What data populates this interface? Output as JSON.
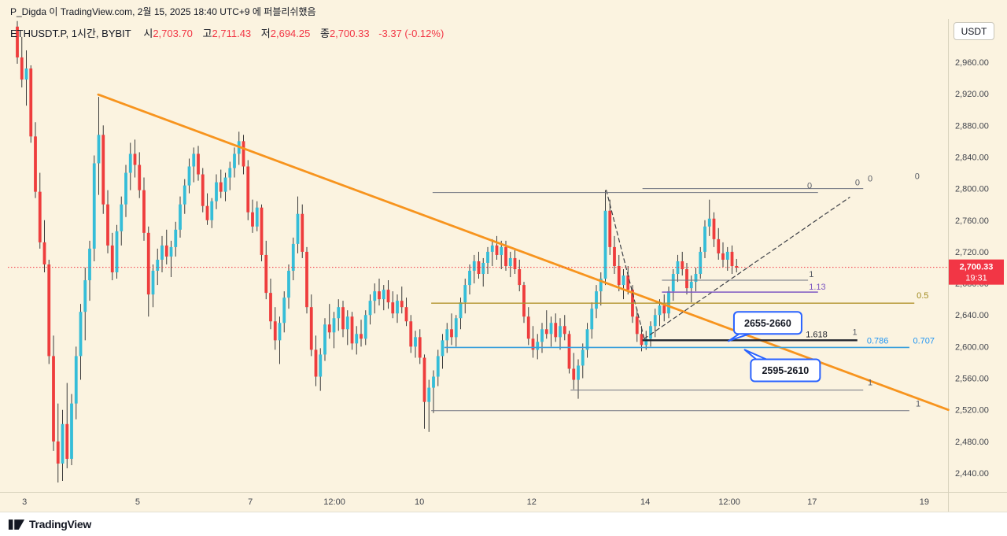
{
  "page": {
    "bg": "#fbf3e0",
    "publish_line": "P_Digda 이 TradingView.com, 2월 15, 2025 18:40 UTC+9 에 퍼블리쉬했음",
    "footer_logo": "TradingView"
  },
  "header": {
    "symbol_line": "ETHUSDT.P, 1시간, BYBIT",
    "ohlc": [
      {
        "label": "시",
        "value": "2,703.70"
      },
      {
        "label": "고",
        "value": "2,711.43"
      },
      {
        "label": "저",
        "value": "2,694.25"
      },
      {
        "label": "종",
        "value": "2,700.33"
      }
    ],
    "change": "-3.37 (-0.12%)"
  },
  "price_scale": {
    "currency": "USDT",
    "last_price": "2,700.33",
    "countdown": "19:31"
  },
  "chart_data": {
    "type": "candlestick",
    "symbol": "ETHUSDT.P",
    "interval": "1시간",
    "exchange": "BYBIT",
    "last_price_value": 2700.33,
    "ohlc_current": {
      "open": 2703.7,
      "high": 2711.43,
      "low": 2694.25,
      "close": 2700.33,
      "change": -3.37,
      "change_pct": -0.12
    },
    "colors": {
      "up": "#35bdd8",
      "down": "#ee3d3d",
      "wick": "#3b3b3b",
      "trend": "#f7941e",
      "accent_blue": "#2962ff",
      "last_price": "#f23645"
    },
    "y_axis": {
      "min": 2420,
      "max": 3020,
      "ticks": [
        {
          "p": 2960,
          "label": "2,960.00"
        },
        {
          "p": 2920,
          "label": "2,920.00"
        },
        {
          "p": 2880,
          "label": "2,880.00"
        },
        {
          "p": 2840,
          "label": "2,840.00"
        },
        {
          "p": 2800,
          "label": "2,800.00"
        },
        {
          "p": 2760,
          "label": "2,760.00"
        },
        {
          "p": 2720,
          "label": "2,720.00"
        },
        {
          "p": 2680,
          "label": "2,680.00"
        },
        {
          "p": 2640,
          "label": "2,640.00"
        },
        {
          "p": 2600,
          "label": "2,600.00"
        },
        {
          "p": 2560,
          "label": "2,560.00"
        },
        {
          "p": 2520,
          "label": "2,520.00"
        },
        {
          "p": 2480,
          "label": "2,480.00"
        },
        {
          "p": 2440,
          "label": "2,440.00"
        }
      ]
    },
    "x_axis_ticks": [
      {
        "label": "3",
        "i": 1.6
      },
      {
        "label": "5",
        "i": 26.6
      },
      {
        "label": "7",
        "i": 51.5
      },
      {
        "label": "12:00",
        "i": 70.1
      },
      {
        "label": "10",
        "i": 88.9
      },
      {
        "label": "12",
        "i": 113.7
      },
      {
        "label": "14",
        "i": 138.8
      },
      {
        "label": "12:00",
        "i": 157.4
      },
      {
        "label": "17",
        "i": 175.7
      },
      {
        "label": "19",
        "i": 200.5
      }
    ],
    "candles": [
      [
        3005,
        3012,
        2958,
        2966
      ],
      [
        2966,
        2992,
        2928,
        2938
      ],
      [
        2938,
        2975,
        2905,
        2952
      ],
      [
        2952,
        2956,
        2858,
        2866
      ],
      [
        2866,
        2884,
        2788,
        2796
      ],
      [
        2796,
        2820,
        2724,
        2732
      ],
      [
        2732,
        2760,
        2694,
        2704
      ],
      [
        2704,
        2710,
        2578,
        2588
      ],
      [
        2588,
        2614,
        2468,
        2480
      ],
      [
        2480,
        2528,
        2428,
        2452
      ],
      [
        2452,
        2520,
        2430,
        2502
      ],
      [
        2502,
        2554,
        2446,
        2458
      ],
      [
        2458,
        2540,
        2450,
        2528
      ],
      [
        2528,
        2600,
        2508,
        2588
      ],
      [
        2588,
        2654,
        2558,
        2644
      ],
      [
        2644,
        2700,
        2608,
        2684
      ],
      [
        2684,
        2734,
        2658,
        2724
      ],
      [
        2724,
        2842,
        2708,
        2832
      ],
      [
        2832,
        2916,
        2792,
        2868
      ],
      [
        2868,
        2880,
        2768,
        2780
      ],
      [
        2780,
        2798,
        2718,
        2728
      ],
      [
        2728,
        2744,
        2684,
        2694
      ],
      [
        2694,
        2754,
        2686,
        2746
      ],
      [
        2746,
        2790,
        2728,
        2780
      ],
      [
        2780,
        2830,
        2764,
        2820
      ],
      [
        2820,
        2858,
        2798,
        2844
      ],
      [
        2844,
        2862,
        2814,
        2830
      ],
      [
        2830,
        2846,
        2788,
        2798
      ],
      [
        2798,
        2814,
        2734,
        2744
      ],
      [
        2744,
        2752,
        2638,
        2666
      ],
      [
        2666,
        2704,
        2650,
        2696
      ],
      [
        2696,
        2724,
        2678,
        2710
      ],
      [
        2710,
        2740,
        2694,
        2728
      ],
      [
        2728,
        2748,
        2704,
        2714
      ],
      [
        2714,
        2734,
        2688,
        2726
      ],
      [
        2726,
        2758,
        2714,
        2748
      ],
      [
        2748,
        2790,
        2738,
        2780
      ],
      [
        2780,
        2812,
        2768,
        2804
      ],
      [
        2804,
        2838,
        2794,
        2828
      ],
      [
        2828,
        2852,
        2808,
        2844
      ],
      [
        2844,
        2854,
        2810,
        2818
      ],
      [
        2818,
        2826,
        2770,
        2778
      ],
      [
        2778,
        2794,
        2754,
        2760
      ],
      [
        2760,
        2788,
        2750,
        2784
      ],
      [
        2784,
        2818,
        2774,
        2808
      ],
      [
        2808,
        2824,
        2788,
        2796
      ],
      [
        2796,
        2820,
        2784,
        2814
      ],
      [
        2814,
        2834,
        2798,
        2826
      ],
      [
        2826,
        2852,
        2814,
        2844
      ],
      [
        2844,
        2872,
        2830,
        2860
      ],
      [
        2860,
        2868,
        2818,
        2828
      ],
      [
        2828,
        2836,
        2760,
        2770
      ],
      [
        2770,
        2786,
        2744,
        2752
      ],
      [
        2752,
        2784,
        2746,
        2776
      ],
      [
        2776,
        2780,
        2708,
        2716
      ],
      [
        2716,
        2734,
        2660,
        2668
      ],
      [
        2668,
        2686,
        2622,
        2632
      ],
      [
        2632,
        2650,
        2596,
        2608
      ],
      [
        2608,
        2638,
        2578,
        2630
      ],
      [
        2630,
        2670,
        2618,
        2662
      ],
      [
        2662,
        2704,
        2648,
        2696
      ],
      [
        2696,
        2738,
        2684,
        2730
      ],
      [
        2730,
        2790,
        2718,
        2768
      ],
      [
        2768,
        2780,
        2712,
        2720
      ],
      [
        2720,
        2726,
        2642,
        2650
      ],
      [
        2650,
        2666,
        2588,
        2596
      ],
      [
        2596,
        2614,
        2550,
        2562
      ],
      [
        2562,
        2598,
        2544,
        2590
      ],
      [
        2590,
        2636,
        2582,
        2628
      ],
      [
        2628,
        2654,
        2610,
        2618
      ],
      [
        2618,
        2644,
        2598,
        2636
      ],
      [
        2636,
        2660,
        2620,
        2650
      ],
      [
        2650,
        2658,
        2612,
        2622
      ],
      [
        2622,
        2646,
        2602,
        2638
      ],
      [
        2638,
        2644,
        2596,
        2604
      ],
      [
        2604,
        2626,
        2590,
        2616
      ],
      [
        2616,
        2634,
        2600,
        2610
      ],
      [
        2610,
        2646,
        2602,
        2640
      ],
      [
        2640,
        2666,
        2628,
        2658
      ],
      [
        2658,
        2680,
        2642,
        2670
      ],
      [
        2670,
        2686,
        2652,
        2660
      ],
      [
        2660,
        2678,
        2646,
        2672
      ],
      [
        2672,
        2684,
        2648,
        2656
      ],
      [
        2656,
        2670,
        2636,
        2642
      ],
      [
        2642,
        2666,
        2630,
        2658
      ],
      [
        2658,
        2676,
        2642,
        2650
      ],
      [
        2650,
        2662,
        2626,
        2632
      ],
      [
        2632,
        2640,
        2592,
        2600
      ],
      [
        2600,
        2620,
        2586,
        2612
      ],
      [
        2612,
        2622,
        2578,
        2586
      ],
      [
        2586,
        2590,
        2496,
        2530
      ],
      [
        2530,
        2558,
        2492,
        2548
      ],
      [
        2548,
        2570,
        2516,
        2562
      ],
      [
        2562,
        2596,
        2550,
        2588
      ],
      [
        2588,
        2616,
        2572,
        2608
      ],
      [
        2608,
        2630,
        2592,
        2622
      ],
      [
        2622,
        2642,
        2602,
        2612
      ],
      [
        2612,
        2640,
        2600,
        2636
      ],
      [
        2636,
        2662,
        2622,
        2656
      ],
      [
        2656,
        2686,
        2642,
        2678
      ],
      [
        2678,
        2704,
        2666,
        2696
      ],
      [
        2696,
        2716,
        2680,
        2708
      ],
      [
        2708,
        2720,
        2686,
        2692
      ],
      [
        2692,
        2712,
        2676,
        2706
      ],
      [
        2706,
        2726,
        2692,
        2720
      ],
      [
        2720,
        2736,
        2702,
        2728
      ],
      [
        2728,
        2740,
        2710,
        2716
      ],
      [
        2716,
        2734,
        2698,
        2726
      ],
      [
        2726,
        2734,
        2696,
        2702
      ],
      [
        2702,
        2720,
        2688,
        2712
      ],
      [
        2712,
        2722,
        2692,
        2698
      ],
      [
        2698,
        2710,
        2670,
        2678
      ],
      [
        2678,
        2682,
        2630,
        2638
      ],
      [
        2638,
        2650,
        2602,
        2610
      ],
      [
        2610,
        2626,
        2586,
        2596
      ],
      [
        2596,
        2616,
        2584,
        2606
      ],
      [
        2606,
        2630,
        2592,
        2622
      ],
      [
        2622,
        2646,
        2610,
        2616
      ],
      [
        2616,
        2638,
        2600,
        2630
      ],
      [
        2630,
        2642,
        2606,
        2612
      ],
      [
        2612,
        2636,
        2596,
        2626
      ],
      [
        2626,
        2640,
        2608,
        2616
      ],
      [
        2616,
        2620,
        2566,
        2572
      ],
      [
        2572,
        2592,
        2546,
        2558
      ],
      [
        2558,
        2584,
        2534,
        2576
      ],
      [
        2576,
        2604,
        2560,
        2596
      ],
      [
        2596,
        2630,
        2586,
        2622
      ],
      [
        2622,
        2656,
        2610,
        2648
      ],
      [
        2648,
        2678,
        2636,
        2670
      ],
      [
        2670,
        2694,
        2652,
        2686
      ],
      [
        2686,
        2798,
        2678,
        2772
      ],
      [
        2772,
        2786,
        2716,
        2726
      ],
      [
        2726,
        2740,
        2692,
        2702
      ],
      [
        2702,
        2716,
        2670,
        2678
      ],
      [
        2678,
        2698,
        2660,
        2690
      ],
      [
        2690,
        2702,
        2666,
        2672
      ],
      [
        2672,
        2678,
        2630,
        2638
      ],
      [
        2638,
        2648,
        2606,
        2616
      ],
      [
        2616,
        2626,
        2594,
        2602
      ],
      [
        2602,
        2620,
        2596,
        2610
      ],
      [
        2610,
        2632,
        2600,
        2626
      ],
      [
        2626,
        2648,
        2612,
        2640
      ],
      [
        2640,
        2660,
        2626,
        2652
      ],
      [
        2652,
        2666,
        2632,
        2642
      ],
      [
        2642,
        2676,
        2636,
        2670
      ],
      [
        2670,
        2698,
        2658,
        2692
      ],
      [
        2692,
        2716,
        2682,
        2708
      ],
      [
        2708,
        2720,
        2690,
        2698
      ],
      [
        2698,
        2706,
        2666,
        2674
      ],
      [
        2674,
        2690,
        2656,
        2682
      ],
      [
        2682,
        2700,
        2670,
        2692
      ],
      [
        2692,
        2726,
        2686,
        2720
      ],
      [
        2720,
        2760,
        2712,
        2752
      ],
      [
        2752,
        2786,
        2740,
        2762
      ],
      [
        2762,
        2770,
        2726,
        2736
      ],
      [
        2736,
        2750,
        2710,
        2718
      ],
      [
        2718,
        2732,
        2700,
        2710
      ],
      [
        2710,
        2726,
        2696,
        2720
      ],
      [
        2720,
        2728,
        2692,
        2702
      ],
      [
        2702,
        2711,
        2694,
        2700
      ]
    ],
    "overlays": {
      "trendlines": [
        {
          "i0": 17.9,
          "p0": 2919,
          "i1": 205.8,
          "p1": 2520,
          "color": "#f7941e",
          "w": 2.8
        },
        {
          "i0": 130.2,
          "p0": 2798,
          "i1": 138.6,
          "p1": 2610,
          "color": "#3c3f46",
          "w": 1.2,
          "dash": "5,4"
        },
        {
          "i0": 138.6,
          "p0": 2610,
          "i1": 184,
          "p1": 2789,
          "color": "#3c3f46",
          "w": 1.2,
          "dash": "5,4"
        }
      ],
      "levels": [
        {
          "p": 2795,
          "i0": 91.8,
          "i1": 177,
          "color": "#6f7380",
          "w": 1
        },
        {
          "p": 2800,
          "i0": 138.2,
          "i1": 187,
          "color": "#6f7380",
          "w": 1
        },
        {
          "p": 2684,
          "i0": 142.5,
          "i1": 174.8,
          "color": "#6f7380",
          "w": 1
        },
        {
          "p": 2669,
          "i0": 142.5,
          "i1": 177,
          "color": "#7e57c2",
          "w": 1.4
        },
        {
          "p": 2655,
          "i0": 91.5,
          "i1": 198.3,
          "color": "#b0922b",
          "w": 1.4
        },
        {
          "p": 2608,
          "i0": 138.2,
          "i1": 185.7,
          "color": "#23262f",
          "w": 2.4
        },
        {
          "p": 2599,
          "i0": 94.4,
          "i1": 197.2,
          "color": "#3aa0dc",
          "w": 1.6
        },
        {
          "p": 2545,
          "i0": 122.3,
          "i1": 187,
          "color": "#6f7380",
          "w": 1
        },
        {
          "p": 2519,
          "i0": 91.5,
          "i1": 197.2,
          "color": "#6f7380",
          "w": 1
        }
      ],
      "labels": [
        {
          "t": "0",
          "i": 174.6,
          "p": 2800,
          "c": "#595d66"
        },
        {
          "t": "0",
          "i": 185.2,
          "p": 2804,
          "c": "#595d66"
        },
        {
          "t": "0",
          "i": 188.0,
          "p": 2809,
          "c": "#595d66"
        },
        {
          "t": "0",
          "i": 198.4,
          "p": 2812,
          "c": "#595d66"
        },
        {
          "t": "1",
          "i": 175.0,
          "p": 2688,
          "c": "#595d66"
        },
        {
          "t": "1.13",
          "i": 175.0,
          "p": 2672,
          "c": "#7e57c2"
        },
        {
          "t": "0.5",
          "i": 198.8,
          "p": 2661,
          "c": "#a08a20"
        },
        {
          "t": "1.618",
          "i": 174.3,
          "p": 2612,
          "c": "#23262f"
        },
        {
          "t": "1",
          "i": 184.6,
          "p": 2615,
          "c": "#595d66"
        },
        {
          "t": "0.786",
          "i": 187.8,
          "p": 2604,
          "c": "#2196f3"
        },
        {
          "t": "0.707",
          "i": 198.0,
          "p": 2604,
          "c": "#2196f3"
        },
        {
          "t": "1",
          "i": 188.0,
          "p": 2551,
          "c": "#595d66"
        },
        {
          "t": "1",
          "i": 198.6,
          "p": 2524,
          "c": "#595d66"
        }
      ],
      "callouts": [
        {
          "text": "2655-2660",
          "i": 165.9,
          "p": 2630,
          "w": 86,
          "h": 28,
          "tail_i": 157.2,
          "tail_p": 2607,
          "side": "bottom"
        },
        {
          "text": "2595-2610",
          "i": 169.8,
          "p": 2570,
          "w": 88,
          "h": 28,
          "tail_i": 160.8,
          "tail_p": 2596,
          "side": "top"
        }
      ]
    }
  }
}
